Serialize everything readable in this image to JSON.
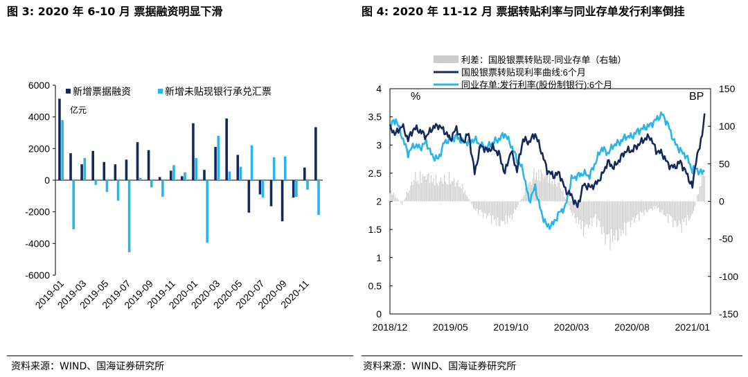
{
  "fig3": {
    "title": "图 3:  2020 年 6-10 月  票据融资明显下滑",
    "source": "资料来源：WIND、国海证券研究所",
    "chart_data": {
      "type": "bar",
      "unit": "亿元",
      "ylim": [
        -6000,
        6000
      ],
      "yticks": [
        -6000,
        -4000,
        -2000,
        0,
        2000,
        4000,
        6000
      ],
      "categories": [
        "2019-01",
        "2019-02",
        "2019-03",
        "2019-04",
        "2019-05",
        "2019-06",
        "2019-07",
        "2019-08",
        "2019-09",
        "2019-10",
        "2019-11",
        "2019-12",
        "2020-01",
        "2020-02",
        "2020-03",
        "2020-04",
        "2020-05",
        "2020-06",
        "2020-07",
        "2020-08",
        "2020-09",
        "2020-10",
        "2020-11",
        "2020-12"
      ],
      "xtick_labels": [
        "2019-01",
        "2019-03",
        "2019-05",
        "2019-07",
        "2019-09",
        "2019-11",
        "2020-01",
        "2020-03",
        "2020-05",
        "2020-07",
        "2020-09",
        "2020-11"
      ],
      "series": [
        {
          "name": "新增票据融资",
          "color": "#14285c",
          "values": [
            5150,
            1700,
            1000,
            1850,
            1150,
            1000,
            1300,
            2400,
            1900,
            200,
            600,
            250,
            3600,
            650,
            2100,
            3900,
            1600,
            -2050,
            -900,
            -1650,
            -2600,
            -1100,
            800,
            3350
          ]
        },
        {
          "name": "新增未贴现银行承兑汇票",
          "color": "#27b5ea",
          "values": [
            3800,
            -3100,
            1400,
            -300,
            -750,
            -1300,
            -4550,
            150,
            -450,
            -1050,
            950,
            500,
            1400,
            -3950,
            2800,
            550,
            850,
            2200,
            -1100,
            1450,
            1500,
            -1050,
            -600,
            -2200
          ]
        }
      ]
    }
  },
  "fig4": {
    "title": "图 4: 2020 年 11-12 月  票据转贴利率与同业存单发行利率倒挂",
    "source": "资料来源：WIND、国海证券研究所",
    "left_axis_unit": "%",
    "right_axis_unit": "BP",
    "chart_data": {
      "type": "line",
      "x_range": [
        "2018-12",
        "2021-02"
      ],
      "xtick_labels": [
        "2018/12",
        "2019/05",
        "2019/10",
        "2020/03",
        "2020/08",
        "2021/01"
      ],
      "ylim_left": [
        0,
        4
      ],
      "yticks_left": [
        0,
        0.5,
        1,
        1.5,
        2,
        2.5,
        3,
        3.5,
        4
      ],
      "ylim_right": [
        -150,
        150
      ],
      "yticks_right": [
        -150,
        -100,
        -50,
        0,
        50,
        100,
        150
      ],
      "series": [
        {
          "name": "利差：国股银票转贴现-同业存单（右轴）",
          "axis": "right",
          "style": "bar",
          "color": "#cccccc",
          "t": [
            0,
            1,
            2,
            3,
            4,
            5,
            6,
            7,
            8,
            9,
            10,
            11,
            12,
            13,
            14,
            15,
            16,
            17,
            18,
            19,
            20,
            21,
            22,
            23,
            24,
            25,
            26
          ],
          "values": [
            20,
            -5,
            40,
            45,
            35,
            40,
            25,
            -15,
            -25,
            -40,
            -30,
            10,
            50,
            45,
            30,
            -20,
            -50,
            -30,
            -70,
            -60,
            -35,
            -20,
            -10,
            -30,
            -45,
            -25,
            60
          ]
        },
        {
          "name": "国股银票转贴现利率曲线:6个月",
          "axis": "left",
          "color": "#14285c",
          "t": [
            0,
            0.5,
            1,
            1.5,
            2,
            2.5,
            3,
            3.5,
            4,
            4.5,
            5,
            5.5,
            6,
            6.5,
            7,
            7.5,
            8,
            8.5,
            9,
            9.5,
            10,
            10.5,
            11,
            11.5,
            12,
            12.5,
            13,
            13.5,
            14,
            14.5,
            15,
            15.5,
            16,
            16.5,
            17,
            17.5,
            18,
            18.5,
            19,
            19.5,
            20,
            20.5,
            21,
            21.5,
            22,
            22.5,
            23,
            23.5,
            24,
            24.5,
            25,
            25.3,
            25.6,
            26
          ],
          "values": [
            3.3,
            3.2,
            3.35,
            3.1,
            3.3,
            3.25,
            3.15,
            3.3,
            3.35,
            3.25,
            3.1,
            3.3,
            3.05,
            3.2,
            2.5,
            3.0,
            2.9,
            2.95,
            2.85,
            2.5,
            2.9,
            2.55,
            3.1,
            3.05,
            3.2,
            2.9,
            2.55,
            2.45,
            2.5,
            2.2,
            2.1,
            1.9,
            2.3,
            2.25,
            2.3,
            2.45,
            2.7,
            2.6,
            2.75,
            2.9,
            2.9,
            3.0,
            3.1,
            3.15,
            2.9,
            2.85,
            2.65,
            2.6,
            2.7,
            2.5,
            2.25,
            2.75,
            2.95,
            3.5
          ]
        },
        {
          "name": "同业存单:发行利率(股份制银行):6个月",
          "axis": "left",
          "color": "#27b5ea",
          "t": [
            0,
            0.5,
            1,
            1.5,
            2,
            2.5,
            3,
            3.5,
            4,
            4.5,
            5,
            5.5,
            6,
            6.5,
            7,
            7.5,
            8,
            8.5,
            9,
            9.5,
            10,
            10.5,
            11,
            11.5,
            12,
            12.5,
            13,
            13.5,
            14,
            14.5,
            15,
            15.5,
            16,
            16.5,
            17,
            17.5,
            18,
            18.5,
            19,
            19.5,
            20,
            20.5,
            21,
            21.5,
            22,
            22.5,
            23,
            23.5,
            24,
            24.5,
            25,
            25.3,
            25.6,
            26
          ],
          "values": [
            3.35,
            3.45,
            3.15,
            2.85,
            3.0,
            2.95,
            3.05,
            2.8,
            2.75,
            3.05,
            3.1,
            3.15,
            3.05,
            3.05,
            3.1,
            3.0,
            2.95,
            3.05,
            3.1,
            3.2,
            3.0,
            2.75,
            2.55,
            2.0,
            2.25,
            1.8,
            1.55,
            1.6,
            1.8,
            1.9,
            2.4,
            2.45,
            2.5,
            2.45,
            2.7,
            2.95,
            2.85,
            3.0,
            3.05,
            3.15,
            3.15,
            3.25,
            3.3,
            3.35,
            3.45,
            3.55,
            3.35,
            3.05,
            2.9,
            2.8,
            2.55,
            2.6,
            2.5,
            2.55
          ]
        }
      ]
    }
  }
}
